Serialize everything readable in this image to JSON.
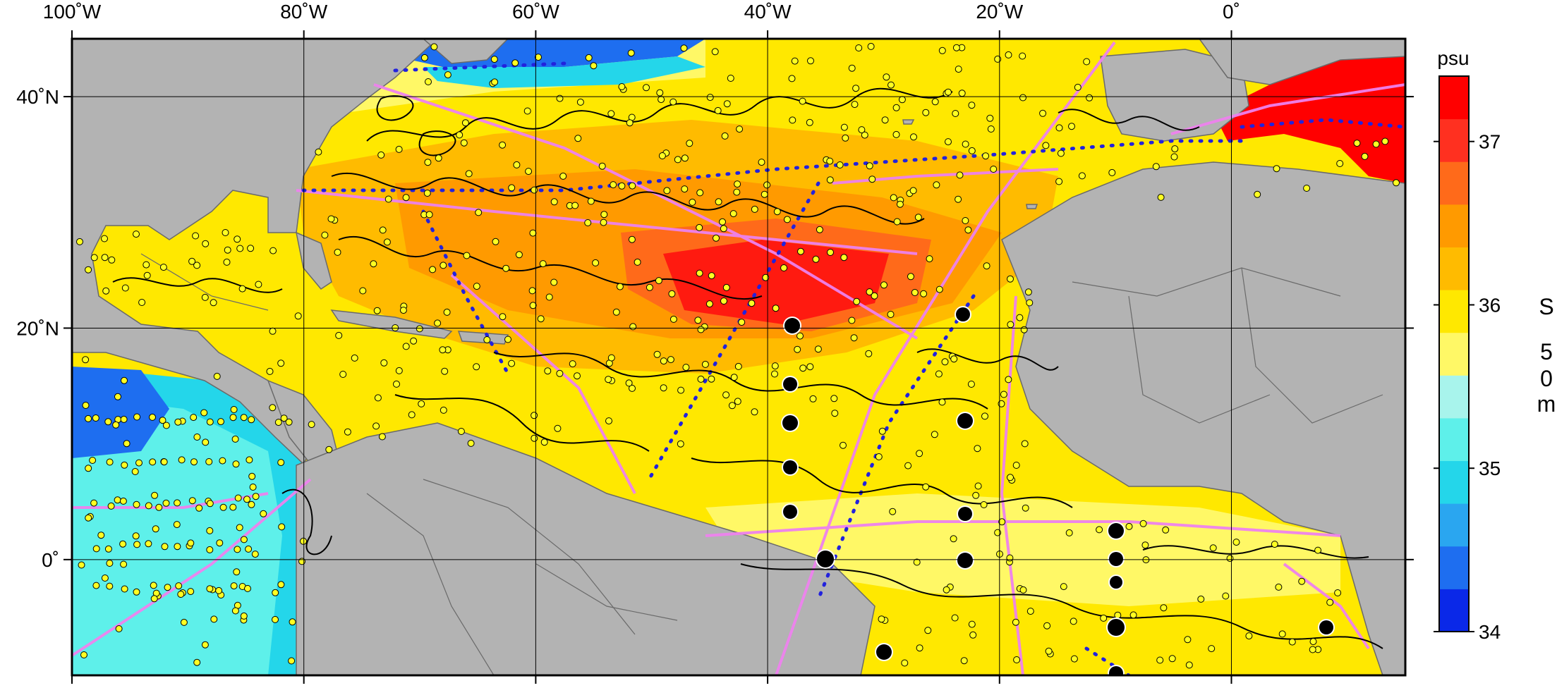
{
  "map": {
    "lon_ticks": [
      "100˚W",
      "80˚W",
      "60˚W",
      "40˚W",
      "20˚W",
      "0˚"
    ],
    "lat_ticks": [
      "40˚N",
      "20˚N",
      "0˚"
    ],
    "extent": {
      "lon": [
        -100,
        15
      ],
      "lat": [
        -10,
        45
      ]
    }
  },
  "colorbar": {
    "unit": "psu",
    "ticks": [
      "34",
      "35",
      "36",
      "37"
    ],
    "vertical_label": [
      "S",
      "5",
      "0",
      "m"
    ],
    "range": [
      34,
      37.4
    ],
    "colors": [
      "#0a28e8",
      "#1e6ef0",
      "#2aa6f0",
      "#24d6ea",
      "#5ef0ea",
      "#a8f4ec",
      "#fff866",
      "#ffe800",
      "#ffbb00",
      "#ff9a00",
      "#ff6a1a",
      "#ff3020",
      "#ff0000"
    ]
  },
  "palette": {
    "land": "#b3b3b3",
    "frame": "#000000",
    "drifter_tracks": "#000000",
    "ship_tracks": "#ee82ee",
    "float_marker": "#ffff22",
    "mooring_marker": "#000000",
    "section_dots": "#2222dd"
  }
}
